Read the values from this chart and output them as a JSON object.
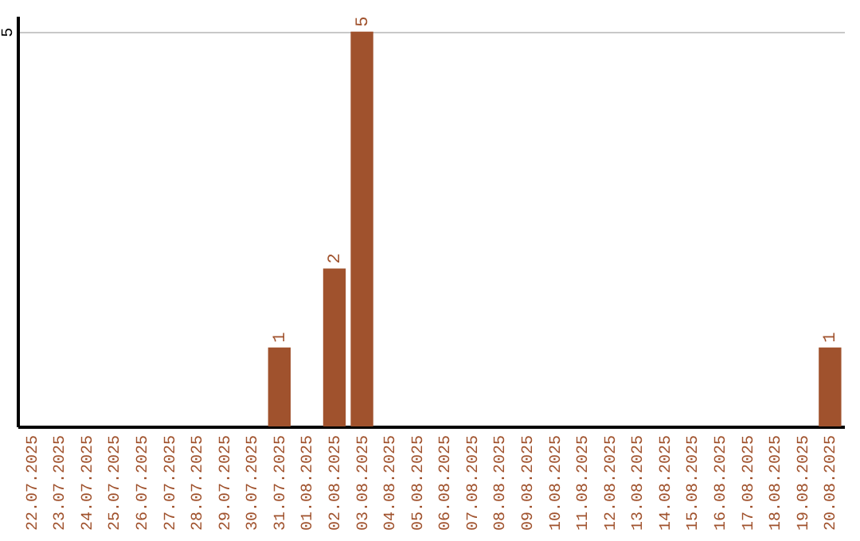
{
  "chart_data": {
    "type": "bar",
    "categories": [
      "22.07.2025",
      "23.07.2025",
      "24.07.2025",
      "25.07.2025",
      "26.07.2025",
      "27.07.2025",
      "28.07.2025",
      "29.07.2025",
      "30.07.2025",
      "31.07.2025",
      "01.08.2025",
      "02.08.2025",
      "03.08.2025",
      "04.08.2025",
      "05.08.2025",
      "06.08.2025",
      "07.08.2025",
      "08.08.2025",
      "09.08.2025",
      "10.08.2025",
      "11.08.2025",
      "12.08.2025",
      "13.08.2025",
      "14.08.2025",
      "15.08.2025",
      "16.08.2025",
      "17.08.2025",
      "18.08.2025",
      "19.08.2025",
      "20.08.2025"
    ],
    "values": [
      0,
      0,
      0,
      0,
      0,
      0,
      0,
      0,
      0,
      1,
      0,
      2,
      5,
      0,
      0,
      0,
      0,
      0,
      0,
      0,
      0,
      0,
      0,
      0,
      0,
      0,
      0,
      0,
      0,
      1
    ],
    "value_labels": [
      null,
      null,
      null,
      null,
      null,
      null,
      null,
      null,
      null,
      "1",
      null,
      "2",
      "5",
      null,
      null,
      null,
      null,
      null,
      null,
      null,
      null,
      null,
      null,
      null,
      null,
      null,
      null,
      null,
      null,
      "1"
    ],
    "color": "#a0522d",
    "ylim": [
      0,
      5.2
    ],
    "yticks": [
      5
    ],
    "grid": "y"
  }
}
